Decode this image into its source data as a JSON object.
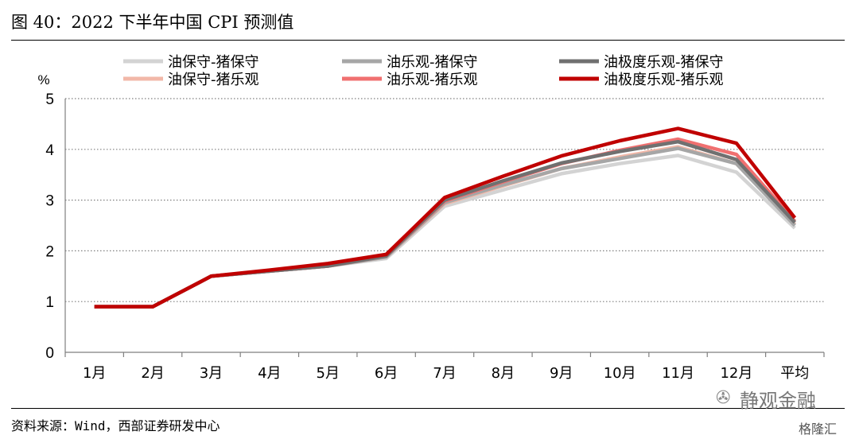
{
  "figure": {
    "title": "图 40：2022 下半年中国 CPI 预测值",
    "source": "资料来源：Wind，西部证券研发中心",
    "watermark": "静观金融",
    "watermark_icon": "wechat-icon",
    "badge": "格隆汇"
  },
  "chart_data": {
    "type": "line",
    "title": "",
    "xlabel": "",
    "ylabel": "%",
    "ylim": [
      0,
      5
    ],
    "yticks": [
      0,
      1,
      2,
      3,
      4,
      5
    ],
    "grid": true,
    "legend_position": "top",
    "categories": [
      "1月",
      "2月",
      "3月",
      "4月",
      "5月",
      "6月",
      "7月",
      "8月",
      "9月",
      "10月",
      "11月",
      "12月",
      "平均"
    ],
    "series": [
      {
        "name": "油保守-猪保守",
        "color": "#d3d3d3",
        "values": [
          0.9,
          0.9,
          1.5,
          1.6,
          1.7,
          1.85,
          2.88,
          3.2,
          3.52,
          3.72,
          3.88,
          3.55,
          2.45
        ]
      },
      {
        "name": "油保守-猪乐观",
        "color": "#f2b8a8",
        "values": [
          0.9,
          0.9,
          1.5,
          1.6,
          1.7,
          1.88,
          2.93,
          3.28,
          3.62,
          3.85,
          4.05,
          3.72,
          2.52
        ]
      },
      {
        "name": "油乐观-猪保守",
        "color": "#a6a6a6",
        "values": [
          0.9,
          0.9,
          1.5,
          1.6,
          1.7,
          1.88,
          2.95,
          3.3,
          3.62,
          3.82,
          4.02,
          3.72,
          2.5
        ]
      },
      {
        "name": "油乐观-猪乐观",
        "color": "#f07070",
        "values": [
          0.9,
          0.9,
          1.5,
          1.6,
          1.7,
          1.9,
          2.98,
          3.36,
          3.72,
          3.98,
          4.2,
          3.9,
          2.58
        ]
      },
      {
        "name": "油极度乐观-猪保守",
        "color": "#707070",
        "values": [
          0.9,
          0.9,
          1.5,
          1.6,
          1.7,
          1.9,
          3.0,
          3.38,
          3.73,
          3.96,
          4.15,
          3.8,
          2.56
        ]
      },
      {
        "name": "油极度乐观-猪乐观",
        "color": "#c00000",
        "values": [
          0.9,
          0.9,
          1.5,
          1.62,
          1.75,
          1.93,
          3.05,
          3.47,
          3.87,
          4.17,
          4.41,
          4.12,
          2.65
        ]
      }
    ]
  }
}
